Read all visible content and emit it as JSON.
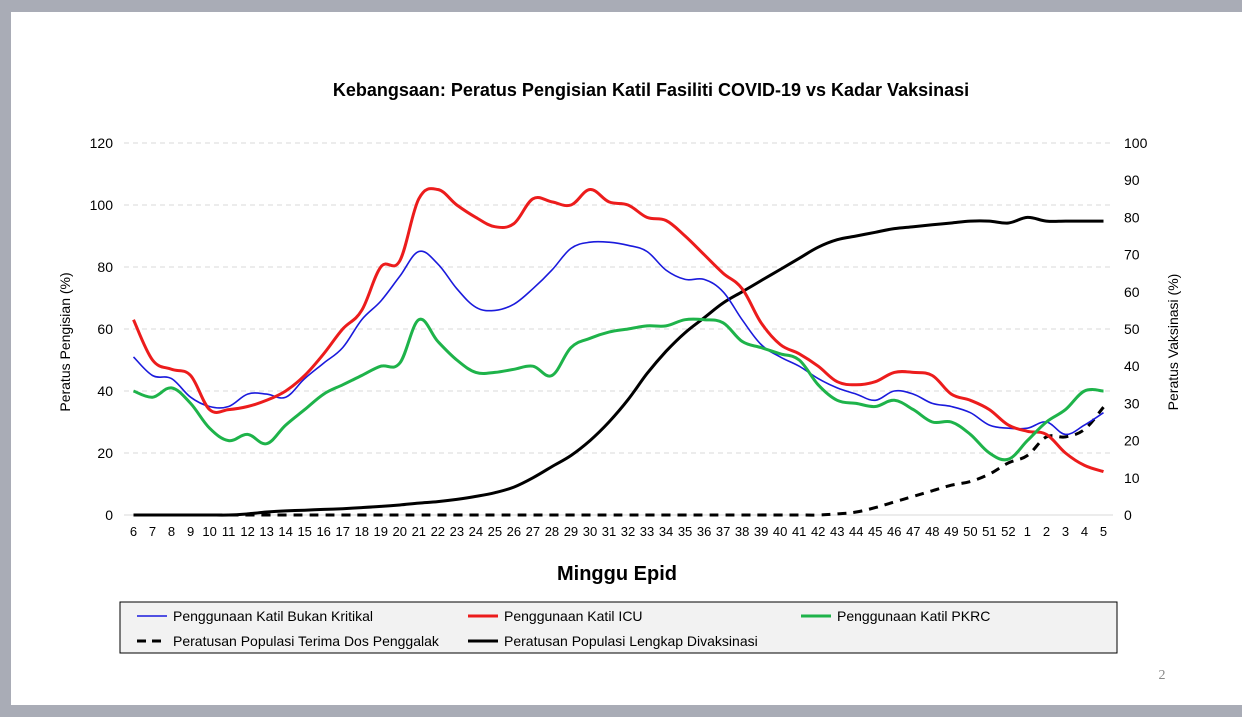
{
  "page": {
    "number": "2"
  },
  "chart_data": {
    "type": "line",
    "title": "Kebangsaan: Peratus Pengisian Katil Fasiliti COVID-19 vs Kadar Vaksinasi",
    "xlabel": "Minggu Epid",
    "ylabel": "Peratus Pengisian (%)",
    "y2label": "Peratus Vaksinasi (%)",
    "ylim": [
      0,
      120
    ],
    "y2lim": [
      0,
      100
    ],
    "yticks": [
      "0",
      "20",
      "40",
      "60",
      "80",
      "100",
      "120"
    ],
    "y2ticks": [
      "0",
      "10",
      "20",
      "30",
      "40",
      "50",
      "60",
      "70",
      "80",
      "90",
      "100"
    ],
    "grid": true,
    "categories": [
      "6",
      "7",
      "8",
      "9",
      "10",
      "11",
      "12",
      "13",
      "14",
      "15",
      "16",
      "17",
      "18",
      "19",
      "20",
      "21",
      "22",
      "23",
      "24",
      "25",
      "26",
      "27",
      "28",
      "29",
      "30",
      "31",
      "32",
      "33",
      "34",
      "35",
      "36",
      "37",
      "38",
      "39",
      "40",
      "41",
      "42",
      "43",
      "44",
      "45",
      "46",
      "47",
      "48",
      "49",
      "50",
      "51",
      "52",
      "1",
      "2",
      "3",
      "4",
      "5"
    ],
    "series": [
      {
        "name": "Penggunaan Katil Bukan Kritikal",
        "axis": "left",
        "color": "#1a1adc",
        "style": "solid",
        "values": [
          51,
          45,
          44,
          38,
          35,
          35,
          39,
          39,
          38,
          44,
          49,
          54,
          63,
          69,
          77,
          85,
          81,
          73,
          67,
          66,
          68,
          73,
          79,
          86,
          88,
          88,
          87,
          85,
          79,
          76,
          76,
          72,
          63,
          55,
          51,
          48,
          44,
          41,
          39,
          37,
          40,
          39,
          36,
          35,
          33,
          29,
          28,
          28,
          30,
          26,
          29,
          33
        ]
      },
      {
        "name": "Penggunaan Katil ICU",
        "axis": "left",
        "color": "#ec1c1c",
        "style": "solid",
        "values": [
          63,
          50,
          47,
          45,
          34,
          34,
          35,
          37,
          40,
          45,
          52,
          60,
          66,
          80,
          82,
          102,
          105,
          100,
          96,
          93,
          94,
          102,
          101,
          100,
          105,
          101,
          100,
          96,
          95,
          90,
          84,
          78,
          73,
          62,
          55,
          52,
          48,
          43,
          42,
          43,
          46,
          46,
          45,
          39,
          37,
          34,
          29,
          27,
          26,
          20,
          16,
          14
        ]
      },
      {
        "name": "Penggunaan Katil PKRC",
        "axis": "left",
        "color": "#1eb34a",
        "style": "solid",
        "values": [
          40,
          38,
          41,
          36,
          28,
          24,
          26,
          23,
          29,
          34,
          39,
          42,
          45,
          48,
          49,
          63,
          56,
          50,
          46,
          46,
          47,
          48,
          45,
          54,
          57,
          59,
          60,
          61,
          61,
          63,
          63,
          62,
          56,
          54,
          52,
          50,
          42,
          37,
          36,
          35,
          37,
          34,
          30,
          30,
          26,
          20,
          18,
          24,
          30,
          34,
          40,
          40
        ]
      },
      {
        "name": "Peratusan Populasi Terima Dos Penggalak",
        "axis": "right",
        "color": "#000000",
        "style": "dashed",
        "values": [
          0,
          0,
          0,
          0,
          0,
          0,
          0,
          0,
          0,
          0,
          0,
          0,
          0,
          0,
          0,
          0,
          0,
          0,
          0,
          0,
          0,
          0,
          0,
          0,
          0,
          0,
          0,
          0,
          0,
          0,
          0,
          0,
          0,
          0,
          0,
          0,
          0,
          0.3,
          0.8,
          2,
          3.5,
          5,
          6.5,
          8,
          9,
          11,
          14,
          16,
          21,
          21,
          23,
          29
        ]
      },
      {
        "name": "Peratusan Populasi Lengkap Divaksinasi",
        "axis": "right",
        "color": "#000000",
        "style": "solid",
        "values": [
          0,
          0,
          0,
          0,
          0,
          0,
          0.3,
          0.8,
          1.1,
          1.3,
          1.5,
          1.7,
          2,
          2.3,
          2.7,
          3.2,
          3.6,
          4.2,
          5,
          6,
          7.5,
          10,
          13,
          16,
          20,
          25,
          31,
          38,
          44,
          49,
          53,
          57,
          60,
          63,
          66,
          69,
          72,
          74,
          75,
          76,
          77,
          77.5,
          78,
          78.5,
          79,
          79,
          78.5,
          80,
          79,
          79,
          79,
          79
        ]
      }
    ],
    "legend": {
      "placement": "bottom",
      "entries": [
        "Penggunaan Katil Bukan Kritikal",
        "Penggunaan Katil ICU",
        "Penggunaan Katil PKRC",
        "Peratusan Populasi Terima Dos Penggalak",
        "Peratusan Populasi Lengkap Divaksinasi"
      ]
    }
  }
}
